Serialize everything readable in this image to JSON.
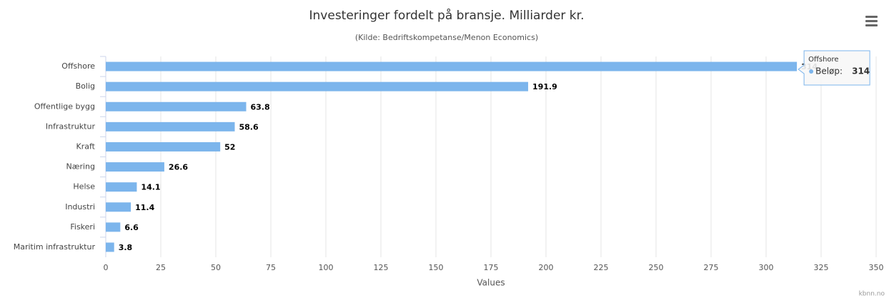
{
  "chart_data": {
    "type": "bar",
    "title": "Investeringer fordelt på bransje. Milliarder kr.",
    "subtitle": "(Kilde: Bedriftskompetanse/Menon Economics)",
    "x_axis_label": "Values",
    "categories": [
      "Offshore",
      "Bolig",
      "Offentlige bygg",
      "Infrastruktur",
      "Kraft",
      "Næring",
      "Helse",
      "Industri",
      "Fiskeri",
      "Maritim infrastruktur"
    ],
    "values": [
      314,
      191.9,
      63.8,
      58.6,
      52,
      26.6,
      14.1,
      11.4,
      6.6,
      3.8
    ],
    "color": "#7cb5ec",
    "xlim": [
      0,
      350
    ],
    "xticks": [
      0,
      25,
      50,
      75,
      100,
      125,
      150,
      175,
      200,
      225,
      250,
      275,
      300,
      325,
      350
    ],
    "grid": true,
    "tooltip_label": "Beløp:",
    "credits": "kbnn.no"
  }
}
